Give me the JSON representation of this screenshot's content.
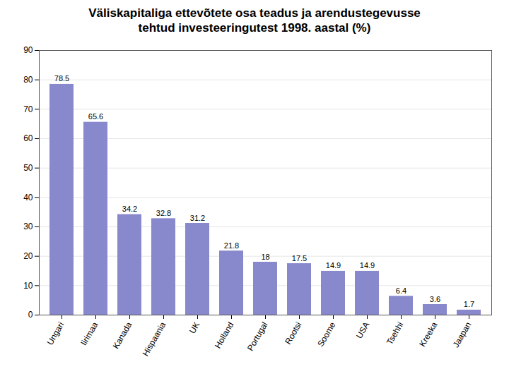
{
  "chart_data": {
    "type": "bar",
    "title": "Väliskapitaliga ettevõtete osa teadus ja arendustegevusse",
    "subtitle": "tehtud investeeringutest 1998. aastal (%)",
    "categories": [
      "Ungari",
      "Iirimaa",
      "Kanada",
      "Hispaania",
      "UK",
      "Holland",
      "Portugal",
      "Rootsi",
      "Soome",
      "USA",
      "Tsehhi",
      "Kreeka",
      "Jaapan"
    ],
    "values": [
      78.5,
      65.6,
      34.2,
      32.8,
      31.2,
      21.8,
      18,
      17.5,
      14.9,
      14.9,
      6.4,
      3.6,
      1.7
    ],
    "color": "#8888cc",
    "data_labels": true,
    "ylim": [
      0,
      90
    ],
    "yticks": [
      0,
      10,
      20,
      30,
      40,
      50,
      60,
      70,
      80,
      90
    ],
    "grid": true
  }
}
